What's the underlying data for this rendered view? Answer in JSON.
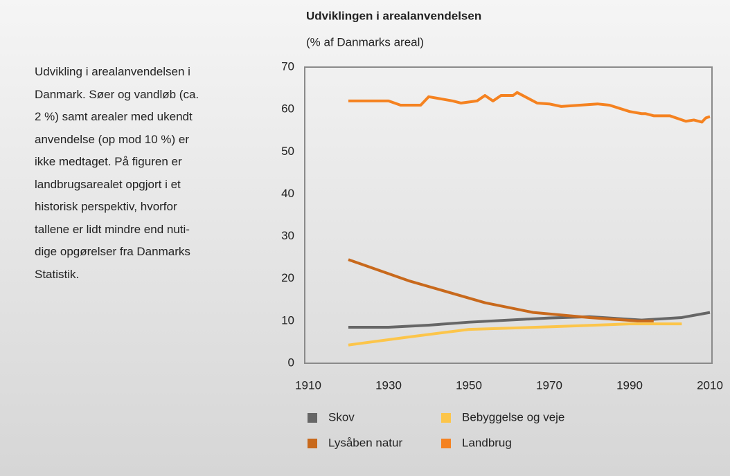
{
  "description": [
    "Udvikling i arealanvendelsen i",
    "Danmark. Søer og vandløb (ca.",
    "2 %) samt arealer med ukendt",
    "anvendelse (op mod 10 %) er",
    "ikke medtaget. På figuren er",
    "landbrugsarealet opgjort i et",
    "historisk perspektiv, hvorfor",
    "tallene er lidt mindre end nuti-",
    "dige opgørelser fra Danmarks",
    "Statistik."
  ],
  "chart_data": {
    "type": "line",
    "title": "Udviklingen i arealanvendelsen",
    "subtitle": "(% af Danmarks areal)",
    "xlim": [
      1910,
      2010
    ],
    "xticks": [
      1910,
      1930,
      1950,
      1970,
      1990,
      2010
    ],
    "ylim": [
      0,
      70
    ],
    "yticks": [
      0,
      10,
      20,
      30,
      40,
      50,
      60,
      70
    ],
    "grid": false,
    "series": [
      {
        "name": "Skov",
        "color": "#666666",
        "x": [
          1920,
          1930,
          1940,
          1950,
          1970,
          1980,
          1993,
          2003,
          2010
        ],
        "values": [
          8.5,
          8.5,
          9,
          9.7,
          10.7,
          11,
          10.2,
          10.8,
          12
        ]
      },
      {
        "name": "Lysåben natur",
        "color": "#c8691c",
        "x": [
          1920,
          1935,
          1954,
          1966,
          1980,
          1992,
          1996
        ],
        "values": [
          24.5,
          19.5,
          14.3,
          12,
          10.8,
          10,
          10
        ]
      },
      {
        "name": "Bebyggelse og veje",
        "color": "#fcc54a",
        "x": [
          1920,
          1935,
          1950,
          1970,
          1990,
          2003
        ],
        "values": [
          4.3,
          6.2,
          8,
          8.6,
          9.3,
          9.3
        ]
      },
      {
        "name": "Landbrug",
        "color": "#f58220",
        "x": [
          1920,
          1930,
          1933,
          1938,
          1940,
          1946,
          1948,
          1952,
          1954,
          1956,
          1958,
          1961,
          1962,
          1964,
          1967,
          1970,
          1973,
          1982,
          1985,
          1990,
          1993,
          1994,
          1996,
          2000,
          2004,
          2006,
          2008,
          2009,
          2010
        ],
        "values": [
          62,
          62,
          61,
          61,
          63,
          62,
          61.5,
          62,
          63.3,
          62,
          63.3,
          63.3,
          64,
          63,
          61.5,
          61.3,
          60.7,
          61.3,
          61,
          59.5,
          59,
          59,
          58.5,
          58.5,
          57.2,
          57.5,
          57,
          58,
          58.3
        ]
      }
    ]
  }
}
